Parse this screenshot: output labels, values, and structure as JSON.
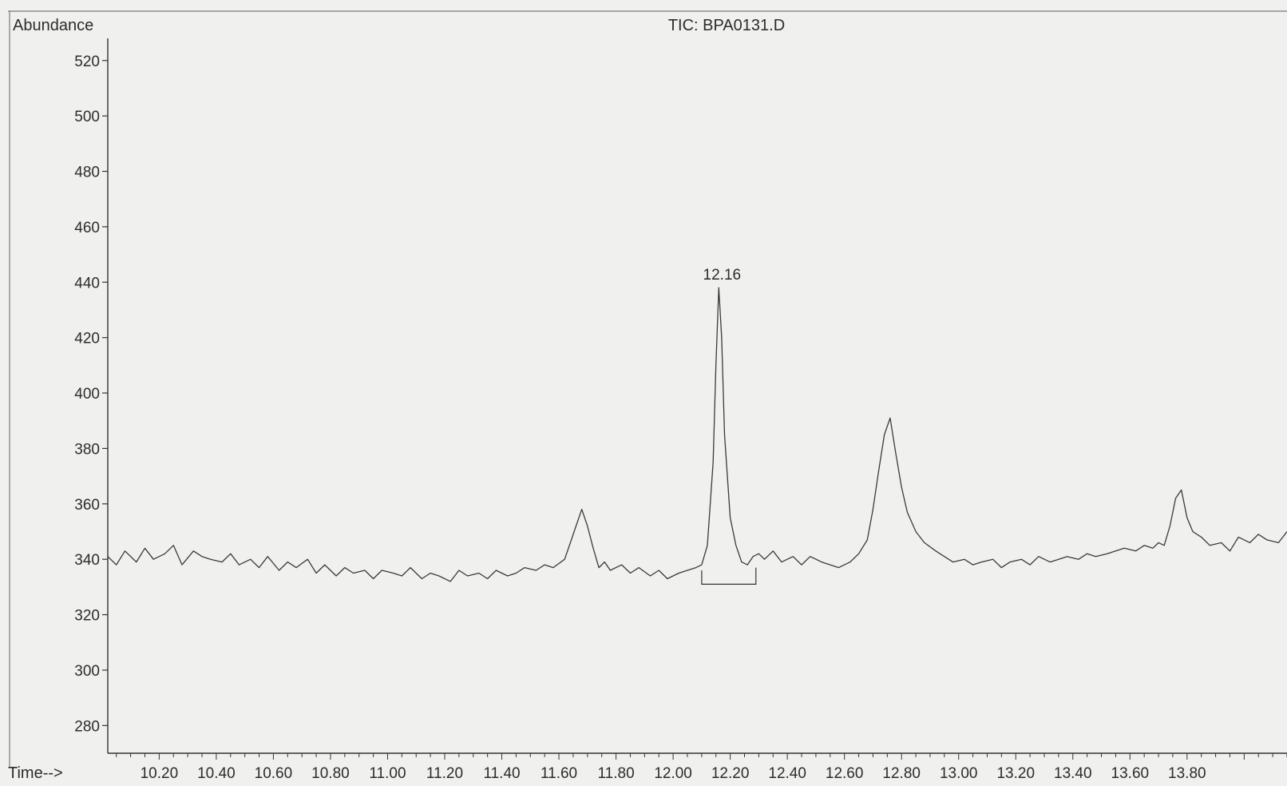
{
  "chart_data": {
    "type": "line",
    "title": "TIC: BPA0131.D",
    "ylabel": "Abundance",
    "xlabel": "Time-->",
    "xlim": [
      10.02,
      14.15
    ],
    "ylim": [
      270,
      528
    ],
    "xticks": [
      "10.20",
      "10.40",
      "10.60",
      "10.80",
      "11.00",
      "11.20",
      "11.40",
      "11.60",
      "11.80",
      "12.00",
      "12.20",
      "12.40",
      "12.60",
      "12.80",
      "13.00",
      "13.20",
      "13.40",
      "13.60",
      "13.80"
    ],
    "yticks": [
      "280",
      "300",
      "320",
      "340",
      "360",
      "380",
      "400",
      "420",
      "440",
      "460",
      "480",
      "500",
      "520"
    ],
    "grid": false,
    "series": [
      {
        "color": "#3a3a3a",
        "x": [
          10.02,
          10.05,
          10.08,
          10.12,
          10.15,
          10.18,
          10.22,
          10.25,
          10.28,
          10.32,
          10.35,
          10.38,
          10.42,
          10.45,
          10.48,
          10.52,
          10.55,
          10.58,
          10.62,
          10.65,
          10.68,
          10.72,
          10.75,
          10.78,
          10.82,
          10.85,
          10.88,
          10.92,
          10.95,
          10.98,
          11.02,
          11.05,
          11.08,
          11.12,
          11.15,
          11.18,
          11.22,
          11.25,
          11.28,
          11.32,
          11.35,
          11.38,
          11.42,
          11.45,
          11.48,
          11.52,
          11.55,
          11.58,
          11.62,
          11.64,
          11.66,
          11.68,
          11.7,
          11.72,
          11.74,
          11.76,
          11.78,
          11.82,
          11.85,
          11.88,
          11.92,
          11.95,
          11.98,
          12.02,
          12.05,
          12.08,
          12.1,
          12.12,
          12.14,
          12.15,
          12.16,
          12.17,
          12.18,
          12.2,
          12.22,
          12.24,
          12.26,
          12.28,
          12.3,
          12.32,
          12.35,
          12.38,
          12.42,
          12.45,
          12.48,
          12.52,
          12.55,
          12.58,
          12.62,
          12.65,
          12.68,
          12.7,
          12.72,
          12.74,
          12.76,
          12.78,
          12.8,
          12.82,
          12.85,
          12.88,
          12.92,
          12.95,
          12.98,
          13.02,
          13.05,
          13.08,
          13.12,
          13.15,
          13.18,
          13.22,
          13.25,
          13.28,
          13.32,
          13.35,
          13.38,
          13.42,
          13.45,
          13.48,
          13.52,
          13.55,
          13.58,
          13.62,
          13.65,
          13.68,
          13.7,
          13.72,
          13.74,
          13.76,
          13.78,
          13.8,
          13.82,
          13.85,
          13.88,
          13.92,
          13.95,
          13.98,
          14.02,
          14.05,
          14.08,
          14.12,
          14.15
        ],
        "y": [
          341,
          338,
          343,
          339,
          344,
          340,
          342,
          345,
          338,
          343,
          341,
          340,
          339,
          342,
          338,
          340,
          337,
          341,
          336,
          339,
          337,
          340,
          335,
          338,
          334,
          337,
          335,
          336,
          333,
          336,
          335,
          334,
          337,
          333,
          335,
          334,
          332,
          336,
          334,
          335,
          333,
          336,
          334,
          335,
          337,
          336,
          338,
          337,
          340,
          346,
          352,
          358,
          352,
          344,
          337,
          339,
          336,
          338,
          335,
          337,
          334,
          336,
          333,
          335,
          336,
          337,
          338,
          345,
          375,
          410,
          438,
          420,
          385,
          355,
          345,
          339,
          338,
          341,
          342,
          340,
          343,
          339,
          341,
          338,
          341,
          339,
          338,
          337,
          339,
          342,
          347,
          358,
          372,
          385,
          391,
          378,
          366,
          357,
          350,
          346,
          343,
          341,
          339,
          340,
          338,
          339,
          340,
          337,
          339,
          340,
          338,
          341,
          339,
          340,
          341,
          340,
          342,
          341,
          342,
          343,
          344,
          343,
          345,
          344,
          346,
          345,
          352,
          362,
          365,
          355,
          350,
          348,
          345,
          346,
          343,
          348,
          346,
          349,
          347,
          346,
          350
        ]
      }
    ],
    "annotations": [
      {
        "x": 12.16,
        "y": 438,
        "text": "12.16"
      }
    ],
    "integration": {
      "x_start": 12.1,
      "x_end": 12.29,
      "baseline": 331,
      "peak_x": 12.16,
      "peak_y": 438,
      "start_y": 336,
      "end_y": 337
    }
  }
}
